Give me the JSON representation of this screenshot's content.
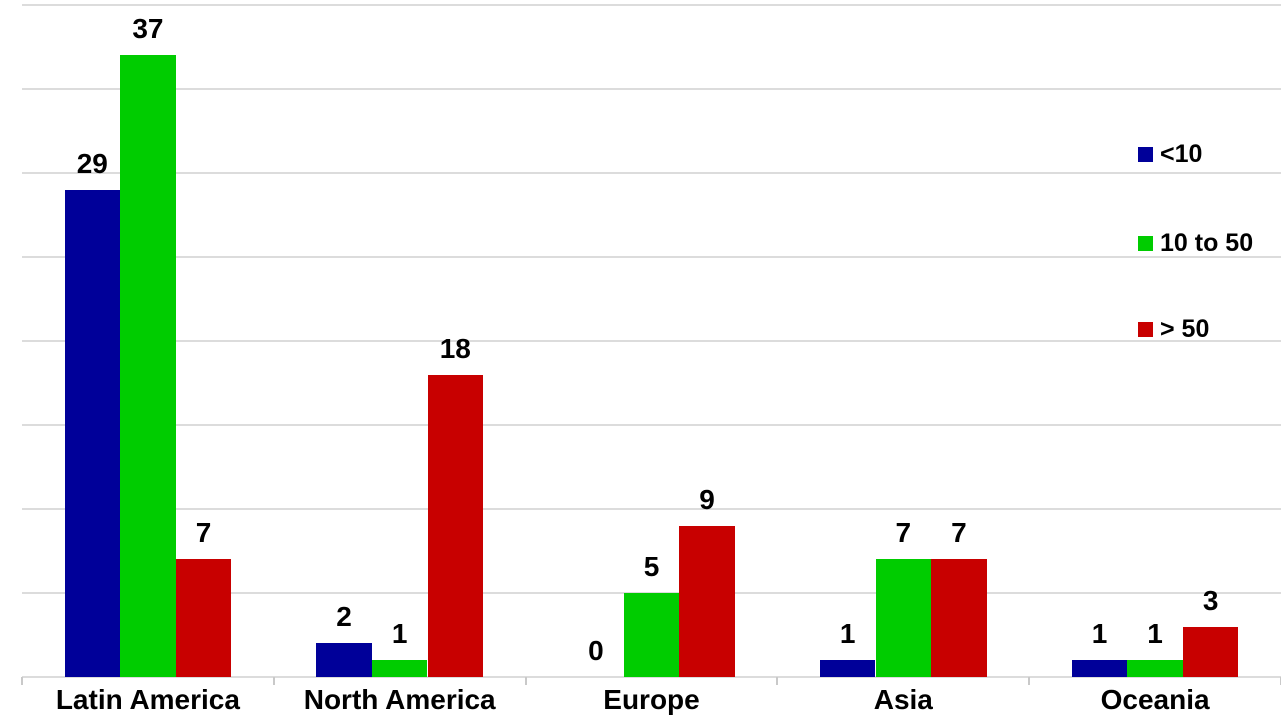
{
  "chart_data": {
    "type": "bar",
    "title": "",
    "xlabel": "",
    "ylabel": "",
    "categories": [
      "Latin America",
      "North America",
      "Europe",
      "Asia",
      "Oceania"
    ],
    "series": [
      {
        "name": "<10",
        "color": "#000099",
        "values": [
          29,
          2,
          0,
          1,
          1
        ]
      },
      {
        "name": "10 to 50",
        "color": "#00CC00",
        "values": [
          37,
          1,
          5,
          7,
          1
        ]
      },
      {
        "name": "> 50",
        "color": "#C80000",
        "values": [
          7,
          18,
          9,
          7,
          3
        ]
      }
    ],
    "ylim": [
      0,
      40
    ],
    "gridline_step": 5,
    "grid": true,
    "y_axis_tick_labels_visible": false,
    "data_labels": true,
    "legend_position": "right"
  },
  "colors": {
    "background": "#FFFFFF",
    "gridline": "#DCDCDC",
    "tick": "#C9C9C9",
    "label_text": "#000000"
  }
}
